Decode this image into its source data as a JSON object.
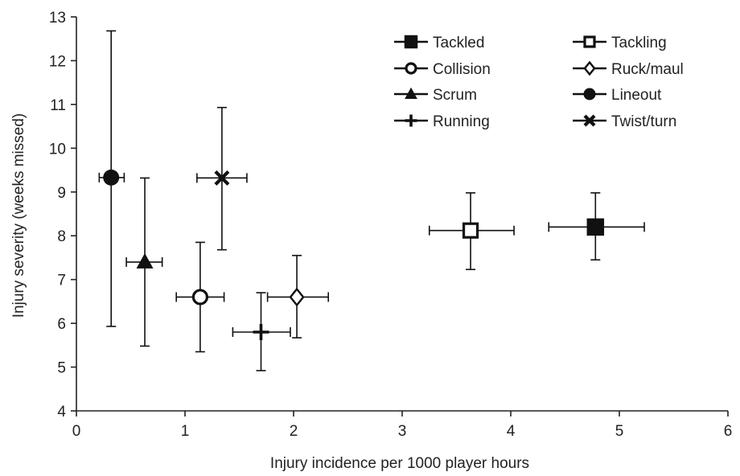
{
  "chart_data": {
    "type": "scatter",
    "title": "",
    "xlabel": "Injury incidence per 1000 player hours",
    "ylabel": "Injury severity (weeks missed)",
    "xlim": [
      0,
      6
    ],
    "ylim": [
      4,
      13
    ],
    "xticks": [
      "0",
      "1",
      "2",
      "3",
      "4",
      "5",
      "6"
    ],
    "yticks": [
      "4",
      "5",
      "6",
      "7",
      "8",
      "9",
      "10",
      "11",
      "12",
      "13"
    ],
    "grid": false,
    "legend_position": "top-right",
    "series": [
      {
        "name": "Tackled",
        "marker": "square-filled",
        "x": 4.78,
        "y": 8.2,
        "xerr": [
          4.35,
          5.23
        ],
        "yerr": [
          7.45,
          8.98
        ]
      },
      {
        "name": "Tackling",
        "marker": "square-open",
        "x": 3.63,
        "y": 8.12,
        "xerr": [
          3.25,
          4.03
        ],
        "yerr": [
          7.23,
          8.98
        ]
      },
      {
        "name": "Collision",
        "marker": "circle-open",
        "x": 1.14,
        "y": 6.6,
        "xerr": [
          0.92,
          1.36
        ],
        "yerr": [
          5.35,
          7.85
        ]
      },
      {
        "name": "Ruck/maul",
        "marker": "diamond-open",
        "x": 2.03,
        "y": 6.6,
        "xerr": [
          1.76,
          2.32
        ],
        "yerr": [
          5.67,
          7.55
        ]
      },
      {
        "name": "Scrum",
        "marker": "triangle-filled",
        "x": 0.63,
        "y": 7.4,
        "xerr": [
          0.46,
          0.79
        ],
        "yerr": [
          5.48,
          9.32
        ]
      },
      {
        "name": "Lineout",
        "marker": "circle-filled",
        "x": 0.32,
        "y": 9.33,
        "xerr": [
          0.21,
          0.44
        ],
        "yerr": [
          5.93,
          12.68
        ]
      },
      {
        "name": "Running",
        "marker": "plus",
        "x": 1.7,
        "y": 5.8,
        "xerr": [
          1.44,
          1.97
        ],
        "yerr": [
          4.92,
          6.7
        ]
      },
      {
        "name": "Twist/turn",
        "marker": "cross",
        "x": 1.34,
        "y": 9.32,
        "xerr": [
          1.11,
          1.57
        ],
        "yerr": [
          7.68,
          10.93
        ]
      }
    ]
  }
}
